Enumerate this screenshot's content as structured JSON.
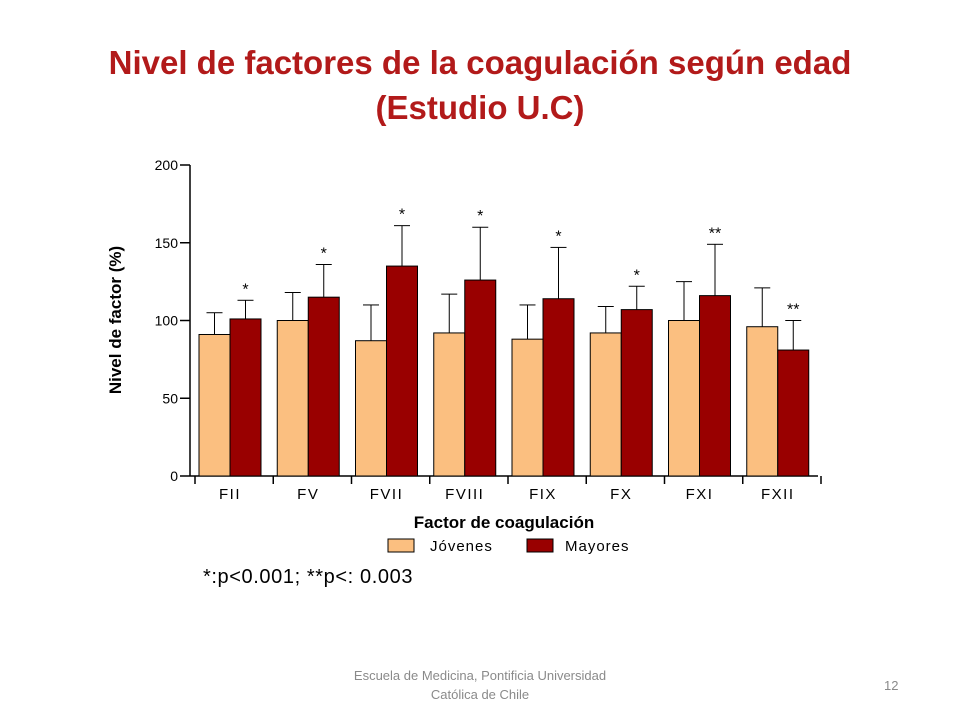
{
  "slide": {
    "title_line1": "Nivel de factores de la coagulación según edad",
    "title_line2": "(Estudio U.C)",
    "note": "*:p<0.001; **p<: 0.003",
    "footer_line1": "Escuela de Medicina, Pontificia Universidad",
    "footer_line2": "Católica de Chile",
    "page_number": "12"
  },
  "colors": {
    "title": "#b21a1a",
    "jovenes": "#fbbf80",
    "mayores": "#990000"
  },
  "chart_data": {
    "type": "bar",
    "xlabel": "Factor de coagulación",
    "ylabel": "Nivel de factor (%)",
    "ylim": [
      0,
      200
    ],
    "yticks": [
      0,
      50,
      100,
      150,
      200
    ],
    "categories": [
      "FII",
      "FV",
      "FVII",
      "FVIII",
      "FIX",
      "FX",
      "FXI",
      "FXII"
    ],
    "series": [
      {
        "name": "Jóvenes",
        "values": [
          91,
          100,
          87,
          92,
          88,
          92,
          100,
          96
        ],
        "error_upper": [
          105,
          118,
          110,
          117,
          110,
          109,
          125,
          121
        ]
      },
      {
        "name": "Mayores",
        "values": [
          101,
          115,
          135,
          126,
          114,
          107,
          116,
          81
        ],
        "error_upper": [
          113,
          136,
          161,
          160,
          147,
          122,
          149,
          100
        ]
      }
    ],
    "significance": [
      "*",
      "*",
      "*",
      "*",
      "*",
      "*",
      "**",
      "**"
    ],
    "legend_position": "bottom"
  }
}
